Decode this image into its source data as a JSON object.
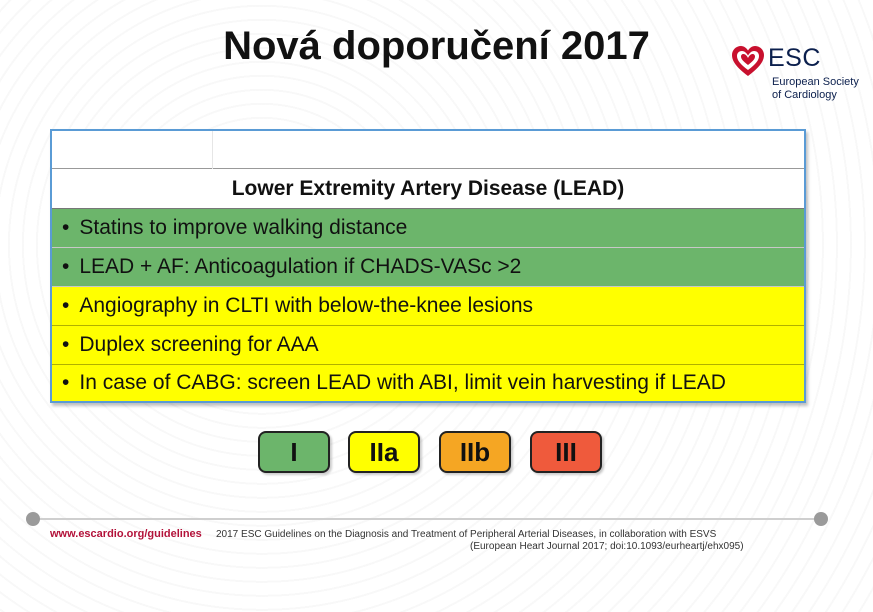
{
  "title": "Nová doporučení 2017",
  "logo": {
    "name": "ESC",
    "subtitle_line1": "European Society",
    "subtitle_line2": "of Cardiology",
    "color": "#0b1f4d",
    "heart_color": "#c8102e"
  },
  "table": {
    "header": "Lower Extremity Artery Disease (LEAD)",
    "rows": [
      {
        "text": "Statins to improve walking distance",
        "class": "I"
      },
      {
        "text": "LEAD + AF: Anticoagulation if CHADS-VASc >2",
        "class": "I"
      },
      {
        "text": "Angiography in CLTI with below-the-knee lesions",
        "class": "IIa"
      },
      {
        "text": "Duplex screening for AAA",
        "class": "IIa"
      },
      {
        "text": "In case of CABG: screen LEAD with ABI, limit vein harvesting if LEAD",
        "class": "IIa"
      }
    ],
    "bullet": "•"
  },
  "legend": [
    {
      "label": "I",
      "color": "#6cb56b"
    },
    {
      "label": "IIa",
      "color": "#ffff00"
    },
    {
      "label": "IIb",
      "color": "#f5a623"
    },
    {
      "label": "III",
      "color": "#ef5a3c"
    }
  ],
  "footer": {
    "url": "www.escardio.org/guidelines",
    "citation_line1": "2017 ESC Guidelines on the Diagnosis and Treatment of Peripheral Arterial Diseases, in collaboration with ESVS",
    "citation_line2": "(European Heart Journal 2017; doi:10.1093/eurheartj/ehx095)"
  }
}
